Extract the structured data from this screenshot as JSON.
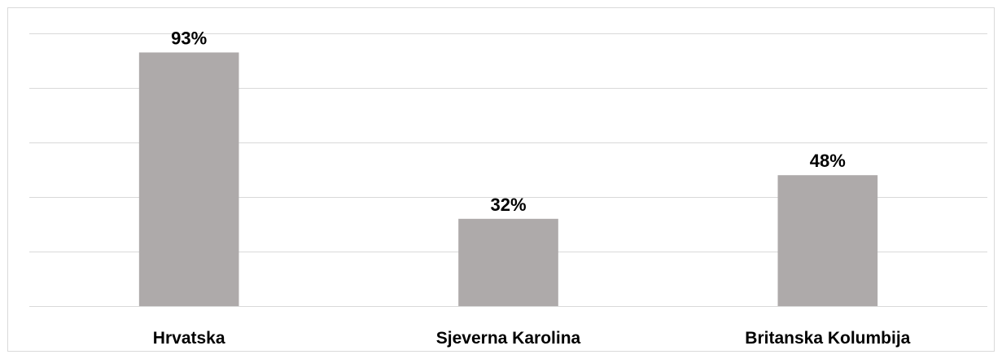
{
  "chart_data": {
    "type": "bar",
    "categories": [
      "Hrvatska",
      "Sjeverna Karolina",
      "Britanska Kolumbija"
    ],
    "values": [
      93,
      32,
      48
    ],
    "data_labels": [
      "93%",
      "32%",
      "48%"
    ],
    "ylim": [
      0,
      100
    ],
    "grid": true,
    "bar_color": "#aeaaaa",
    "title": "",
    "xlabel": "",
    "ylabel": ""
  }
}
